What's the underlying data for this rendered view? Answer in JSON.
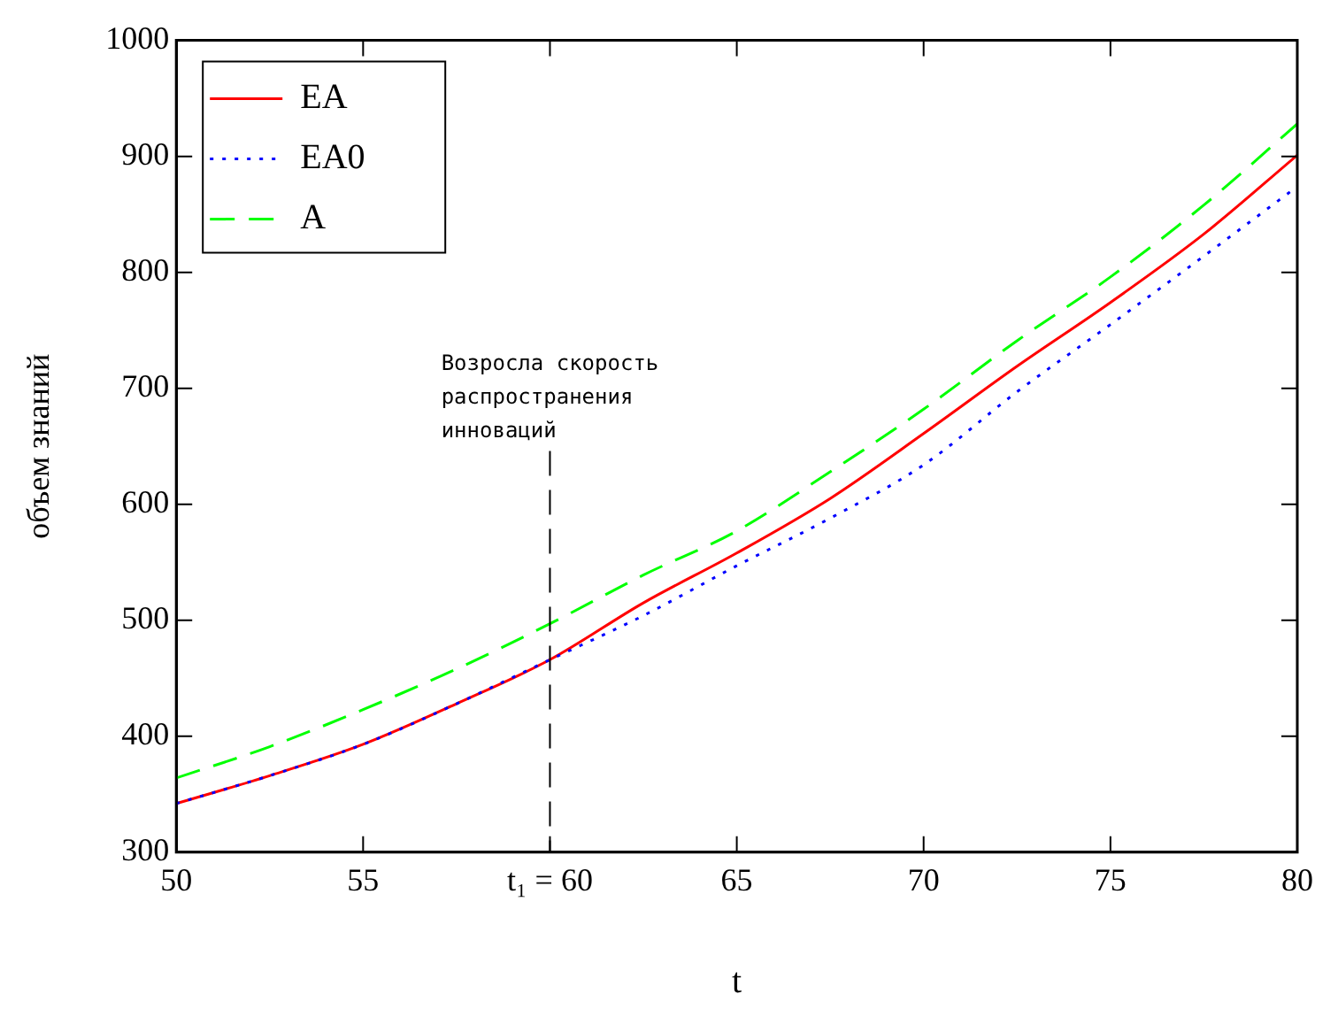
{
  "chart_data": {
    "type": "line",
    "xlabel": "t",
    "ylabel": "объем знаний",
    "x": [
      50,
      52.5,
      55,
      57.5,
      60,
      62.5,
      65,
      67.5,
      70,
      72.5,
      75,
      77.5,
      80
    ],
    "series": [
      {
        "name": "EA",
        "color": "#ff0000",
        "line_style": "solid",
        "values": [
          342,
          366,
          393,
          428,
          466,
          515,
          558,
          605,
          661,
          719,
          774,
          833,
          901
        ]
      },
      {
        "name": "EA0",
        "color": "#0000ff",
        "line_style": "dotted",
        "values": [
          342,
          366,
          393,
          428,
          466,
          504,
          547,
          588,
          634,
          697,
          755,
          814,
          874
        ]
      },
      {
        "name": "A",
        "color": "#00ff00",
        "line_style": "dashed",
        "values": [
          364,
          391,
          423,
          458,
          497,
          539,
          577,
          628,
          682,
          741,
          796,
          858,
          928
        ]
      }
    ],
    "xlim": [
      50,
      80
    ],
    "xticks": [
      50,
      55,
      {
        "value": 60,
        "label": "t₁ = 60"
      },
      65,
      70,
      75,
      80
    ],
    "ylim": [
      300,
      1000
    ],
    "yticks": [
      300,
      400,
      500,
      600,
      700,
      800,
      900,
      1000
    ],
    "grid": false,
    "legend": "top left",
    "marker": "none",
    "ref_lines": [
      {
        "axis": "x",
        "value": 60,
        "label": "Возросла скорость распространения инноваций",
        "color": "#000000",
        "line_style": "dashed"
      }
    ]
  }
}
